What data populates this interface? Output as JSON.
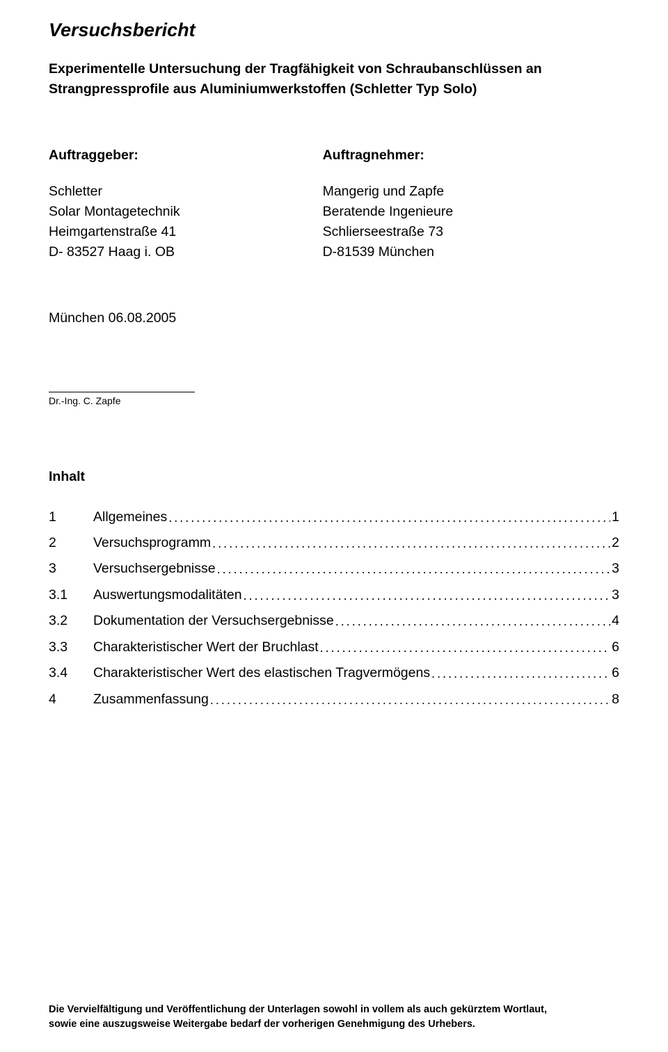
{
  "title": "Versuchsbericht",
  "subtitle_line1": "Experimentelle Untersuchung der Tragfähigkeit von Schraubanschlüssen an",
  "subtitle_line2": "Strangpressprofile aus Aluminiumwerkstoffen (Schletter Typ Solo)",
  "client": {
    "header": "Auftraggeber:",
    "lines": [
      "Schletter",
      "Solar Montagetechnik",
      "Heimgartenstraße 41",
      "D- 83527 Haag i. OB"
    ]
  },
  "contractor": {
    "header": "Auftragnehmer:",
    "lines": [
      "Mangerig und Zapfe",
      "Beratende Ingenieure",
      "Schlierseestraße 73",
      "D-81539 München"
    ]
  },
  "date": "München 06.08.2005",
  "signature": "Dr.-Ing. C. Zapfe",
  "toc_heading": "Inhalt",
  "toc": [
    {
      "num": "1",
      "label": "Allgemeines",
      "page": "1"
    },
    {
      "num": "2",
      "label": "Versuchsprogramm",
      "page": "2"
    },
    {
      "num": "3",
      "label": "Versuchsergebnisse",
      "page": "3"
    },
    {
      "num": "3.1",
      "label": "Auswertungsmodalitäten",
      "page": "3"
    },
    {
      "num": "3.2",
      "label": "Dokumentation der Versuchsergebnisse",
      "page": "4"
    },
    {
      "num": "3.3",
      "label": "Charakteristischer Wert der Bruchlast",
      "page": "6"
    },
    {
      "num": "3.4",
      "label": "Charakteristischer Wert des elastischen Tragvermögens",
      "page": "6"
    },
    {
      "num": "4",
      "label": "Zusammenfassung",
      "page": "8"
    }
  ],
  "footer_line1": "Die Vervielfältigung und Veröffentlichung der Unterlagen sowohl in vollem als auch gekürztem Wortlaut,",
  "footer_line2": "sowie eine auszugsweise Weitergabe bedarf der vorherigen Genehmigung des Urhebers."
}
